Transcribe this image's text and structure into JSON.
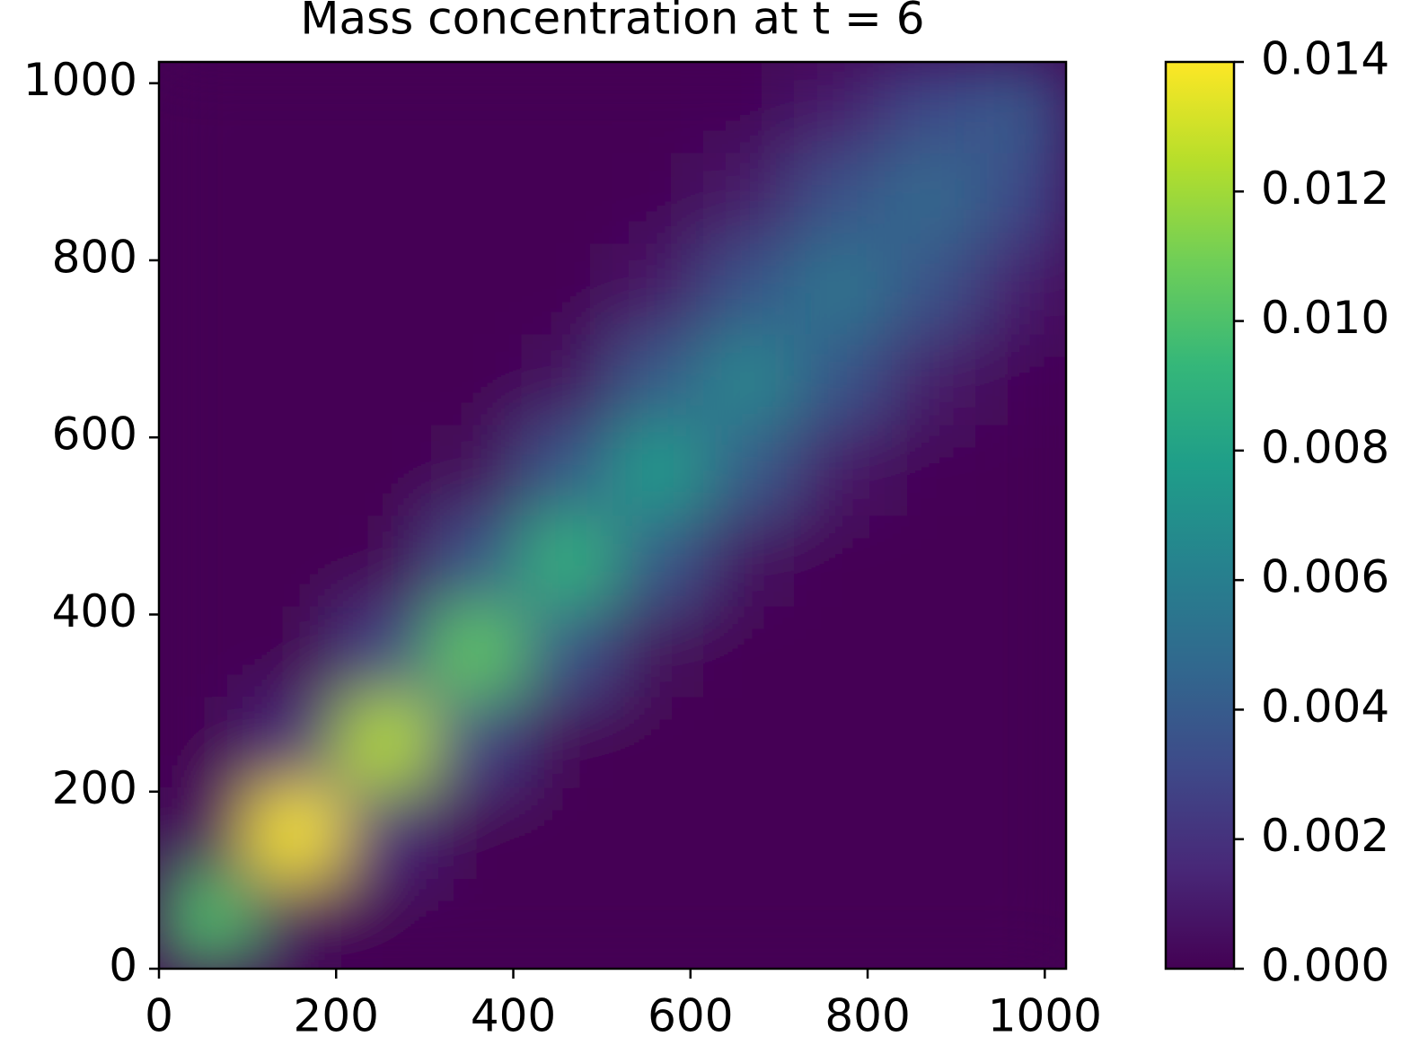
{
  "chart_data": {
    "type": "heatmap",
    "title": "Mass concentration at t = 6",
    "colormap": "viridis",
    "xbins": [
      0,
      102.4,
      204.8,
      307.2,
      409.6,
      512,
      614.4,
      716.8,
      819.2,
      921.6,
      1024
    ],
    "ybins": [
      0,
      102.4,
      204.8,
      307.2,
      409.6,
      512,
      614.4,
      716.8,
      819.2,
      921.6,
      1024
    ],
    "z": [
      [
        0.01,
        0.0004,
        0,
        0,
        0,
        0,
        0,
        0,
        0,
        0
      ],
      [
        0.0004,
        0.014,
        0.0017,
        0,
        0,
        0,
        0,
        0,
        0,
        0
      ],
      [
        0,
        0.0017,
        0.0125,
        0.0028,
        0.0001,
        0,
        0,
        0,
        0,
        0
      ],
      [
        0,
        0,
        0.0028,
        0.0105,
        0.0036,
        0.0003,
        0,
        0,
        0,
        0
      ],
      [
        0,
        0,
        0.0001,
        0.0036,
        0.009,
        0.0039,
        0.0005,
        0,
        0,
        0
      ],
      [
        0,
        0,
        0,
        0.0003,
        0.0039,
        0.0078,
        0.004,
        0.0008,
        0.0001,
        0
      ],
      [
        0,
        0,
        0,
        0,
        0.0005,
        0.004,
        0.0065,
        0.0037,
        0.001,
        0.0002
      ],
      [
        0,
        0,
        0,
        0,
        0,
        0.0008,
        0.0037,
        0.0055,
        0.0035,
        0.0011
      ],
      [
        0,
        0,
        0,
        0,
        0,
        0.0001,
        0.001,
        0.0035,
        0.0048,
        0.0032
      ],
      [
        0,
        0,
        0,
        0,
        0,
        0,
        0.0002,
        0.0011,
        0.0032,
        0.004
      ]
    ],
    "xlim": [
      0,
      1024
    ],
    "ylim": [
      0,
      1024
    ],
    "xticks": [
      0,
      200,
      400,
      600,
      800,
      1000
    ],
    "yticks": [
      0,
      200,
      400,
      600,
      800,
      1000
    ],
    "clim": [
      0,
      0.014
    ],
    "cticks": [
      {
        "value": 0,
        "label": "0.000"
      },
      {
        "value": 0.002,
        "label": "0.002"
      },
      {
        "value": 0.004,
        "label": "0.004"
      },
      {
        "value": 0.006,
        "label": "0.006"
      },
      {
        "value": 0.008,
        "label": "0.008"
      },
      {
        "value": 0.01,
        "label": "0.010"
      },
      {
        "value": 0.012,
        "label": "0.012"
      },
      {
        "value": 0.014,
        "label": "0.014"
      }
    ]
  }
}
